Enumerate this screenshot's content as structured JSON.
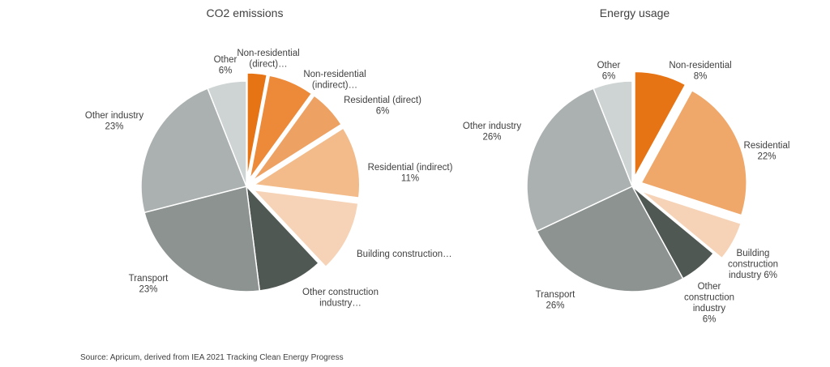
{
  "chart_data": [
    {
      "type": "pie",
      "title": "CO2 emissions",
      "slices": [
        {
          "label": "Non-residential (direct)…",
          "value": 3,
          "color": "#e67414",
          "exploded": true
        },
        {
          "label": "Non-residential (indirect)…",
          "value": 7,
          "color": "#ec8a3a",
          "exploded": true
        },
        {
          "label": "Residential (direct)",
          "pct": "6%",
          "value": 6,
          "color": "#eda163",
          "exploded": true
        },
        {
          "label": "Residential (indirect)",
          "pct": "11%",
          "value": 11,
          "color": "#f2bb89",
          "exploded": true
        },
        {
          "label": "Building construction…",
          "value": 11,
          "color": "#f6d3b7",
          "exploded": true
        },
        {
          "label": "Other construction industry…",
          "value": 10,
          "color": "#505854",
          "exploded": false
        },
        {
          "label": "Transport",
          "pct": "23%",
          "value": 23,
          "color": "#8c9390",
          "exploded": false
        },
        {
          "label": "Other industry",
          "pct": "23%",
          "value": 23,
          "color": "#abb1b0",
          "exploded": false
        },
        {
          "label": "Other",
          "pct": "6%",
          "value": 6,
          "color": "#ced4d3",
          "exploded": false
        }
      ]
    },
    {
      "type": "pie",
      "title": "Energy usage",
      "slices": [
        {
          "label": "Non-residential",
          "pct": "8%",
          "value": 8,
          "color": "#e67414",
          "exploded": true
        },
        {
          "label": "Residential",
          "pct": "22%",
          "value": 22,
          "color": "#efa76a",
          "exploded": true
        },
        {
          "label": "Building construction industry",
          "pct": "6%",
          "value": 6,
          "color": "#f6d3b7",
          "exploded": true
        },
        {
          "label": "Other construction industry",
          "pct": "6%",
          "value": 6,
          "color": "#505854",
          "exploded": false
        },
        {
          "label": "Transport",
          "pct": "26%",
          "value": 26,
          "color": "#8c9390",
          "exploded": false
        },
        {
          "label": "Other industry",
          "pct": "26%",
          "value": 26,
          "color": "#abb1b0",
          "exploded": false
        },
        {
          "label": "Other",
          "pct": "6%",
          "value": 6,
          "color": "#ced4d3",
          "exploded": false
        }
      ]
    }
  ],
  "source": "Source: Apricum, derived from IEA 2021 Tracking Clean Energy Progress"
}
